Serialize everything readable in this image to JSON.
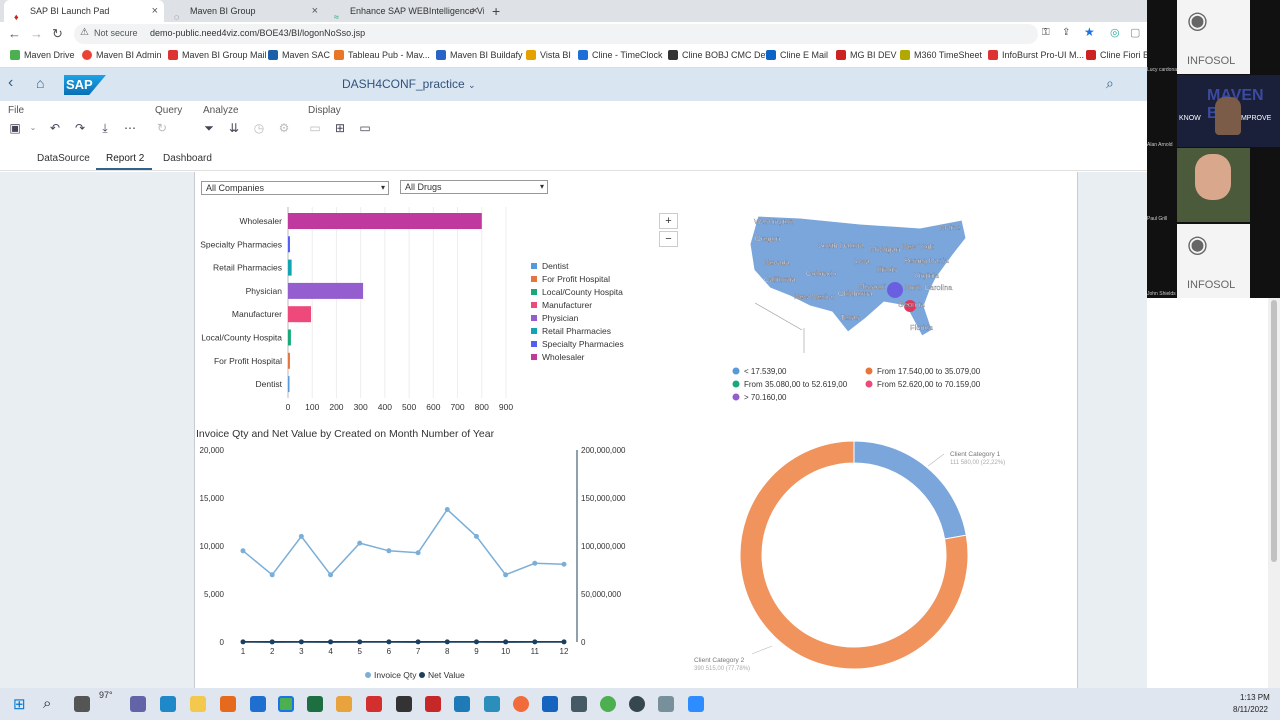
{
  "browser": {
    "tabs": [
      {
        "label": "SAP BI Launch Pad"
      },
      {
        "label": "Maven BI Group"
      },
      {
        "label": "Enhance SAP WEBIntelligence Vi"
      }
    ],
    "security": "Not secure",
    "url": "demo-public.need4viz.com/BOE43/BI/logonNoSso.jsp",
    "bookmarks": [
      "Maven Drive",
      "Maven BI Admin",
      "Maven BI Group Mail",
      "Maven SAC",
      "Tableau Pub - Mav...",
      "Maven BI Buildafy",
      "Vista BI",
      "Cline - TimeClock",
      "Cline BOBJ CMC Dev",
      "Cline E Mail",
      "MG BI DEV",
      "M360 TimeSheet",
      "InfoBurst Pro-UI M...",
      "Cline Fiori BI"
    ]
  },
  "shell": {
    "logo": "SAP",
    "doc_title": "DASH4CONF_practice"
  },
  "toolbar": {
    "groups": [
      "File",
      "Query",
      "Analyze",
      "Display"
    ]
  },
  "report_tabs": [
    "DataSource",
    "Report 2",
    "Dashboard"
  ],
  "filters": {
    "company": "All Companies",
    "drug": "All Drugs"
  },
  "colors": {
    "dentist": "#5899da",
    "for_profit": "#e8743b",
    "local_county": "#19a979",
    "manufacturer": "#ed4a7b",
    "physician": "#945ecf",
    "retail": "#13a4b4",
    "specialty": "#525df4",
    "wholesaler": "#bf399e",
    "invoice": "#7bafd8",
    "net": "#1c3f5e",
    "donut_a": "#7aa6dc",
    "donut_b": "#f0935c"
  },
  "chart_data": [
    {
      "type": "bar",
      "orientation": "horizontal",
      "categories": [
        "Wholesaler",
        "Specialty Pharmacies",
        "Retail Pharmacies",
        "Physician",
        "Manufacturer",
        "Local/County Hospita",
        "For Profit Hospital",
        "Dentist"
      ],
      "values": [
        800,
        8,
        15,
        310,
        95,
        12,
        8,
        3
      ],
      "xticks": [
        "0",
        "100",
        "200",
        "300",
        "400",
        "500",
        "600",
        "700",
        "800",
        "900"
      ],
      "xlim": [
        0,
        900
      ],
      "legend": [
        "Dentist",
        "For Profit Hospital",
        "Local/County Hospita",
        "Manufacturer",
        "Physician",
        "Retail Pharmacies",
        "Specialty Pharmacies",
        "Wholesaler"
      ],
      "legend_position": "right"
    },
    {
      "type": "map",
      "region": "United States",
      "labels": [
        "Washington",
        "Oregon",
        "Nevada",
        "California",
        "South Dakota",
        "Iowa",
        "Illinois",
        "Colorado",
        "Missouri",
        "New Mexico",
        "Oklahoma",
        "Texas",
        "Georgia",
        "North Carolina",
        "Virginia",
        "Pennsylvania",
        "New York",
        "Maine",
        "Michigan",
        "Florida"
      ],
      "legend": [
        "< 17.539,00",
        "From 17.540,00 to 35.079,00",
        "From 35.080,00 to 52.619,00",
        "From 52.620,00 to 70.159,00",
        "> 70.160,00"
      ],
      "zoom_in": "+",
      "zoom_out": "−"
    },
    {
      "type": "line",
      "title": "Invoice Qty and Net Value by Created on Month Number of Year",
      "x": [
        1,
        2,
        3,
        4,
        5,
        6,
        7,
        8,
        9,
        10,
        11,
        12
      ],
      "series": [
        {
          "name": "Invoice Qty",
          "axis": "left",
          "values": [
            9500,
            7000,
            11000,
            7000,
            10300,
            9500,
            9300,
            13800,
            11000,
            7000,
            8200,
            8100
          ]
        },
        {
          "name": "Net Value",
          "axis": "right",
          "values": [
            127000,
            76000,
            130000,
            68000,
            110000,
            114000,
            84000,
            146000,
            100000,
            78000,
            98000,
            96000
          ]
        }
      ],
      "yticks_left": [
        "0",
        "5,000",
        "10,000",
        "15,000",
        "20,000"
      ],
      "ylim_left": [
        0,
        20000
      ],
      "yticks_right": [
        "0",
        "50,000,000",
        "100,000,000",
        "150,000,000",
        "200,000,000"
      ],
      "ylim_right": [
        0,
        200000000
      ],
      "legend_position": "bottom"
    },
    {
      "type": "pie",
      "variant": "donut",
      "slices": [
        {
          "label": "Client Category 1",
          "value": 22.22,
          "text": "111 580,00 (22,22%)"
        },
        {
          "label": "Client Category 2",
          "value": 77.78,
          "text": "390 515,00 (77,78%)"
        }
      ]
    }
  ],
  "video": {
    "brand": "INFOSOL",
    "tagline_a": "KNOW",
    "tagline_b": "IMPROVE",
    "brand2": "MAVEN BI",
    "names": [
      "Lucy cardona",
      "Alan Arnold",
      "Paul Grill",
      "John Shields"
    ]
  },
  "taskbar": {
    "time": "1:13 PM",
    "date": "8/11/2022",
    "temp": "97°"
  }
}
